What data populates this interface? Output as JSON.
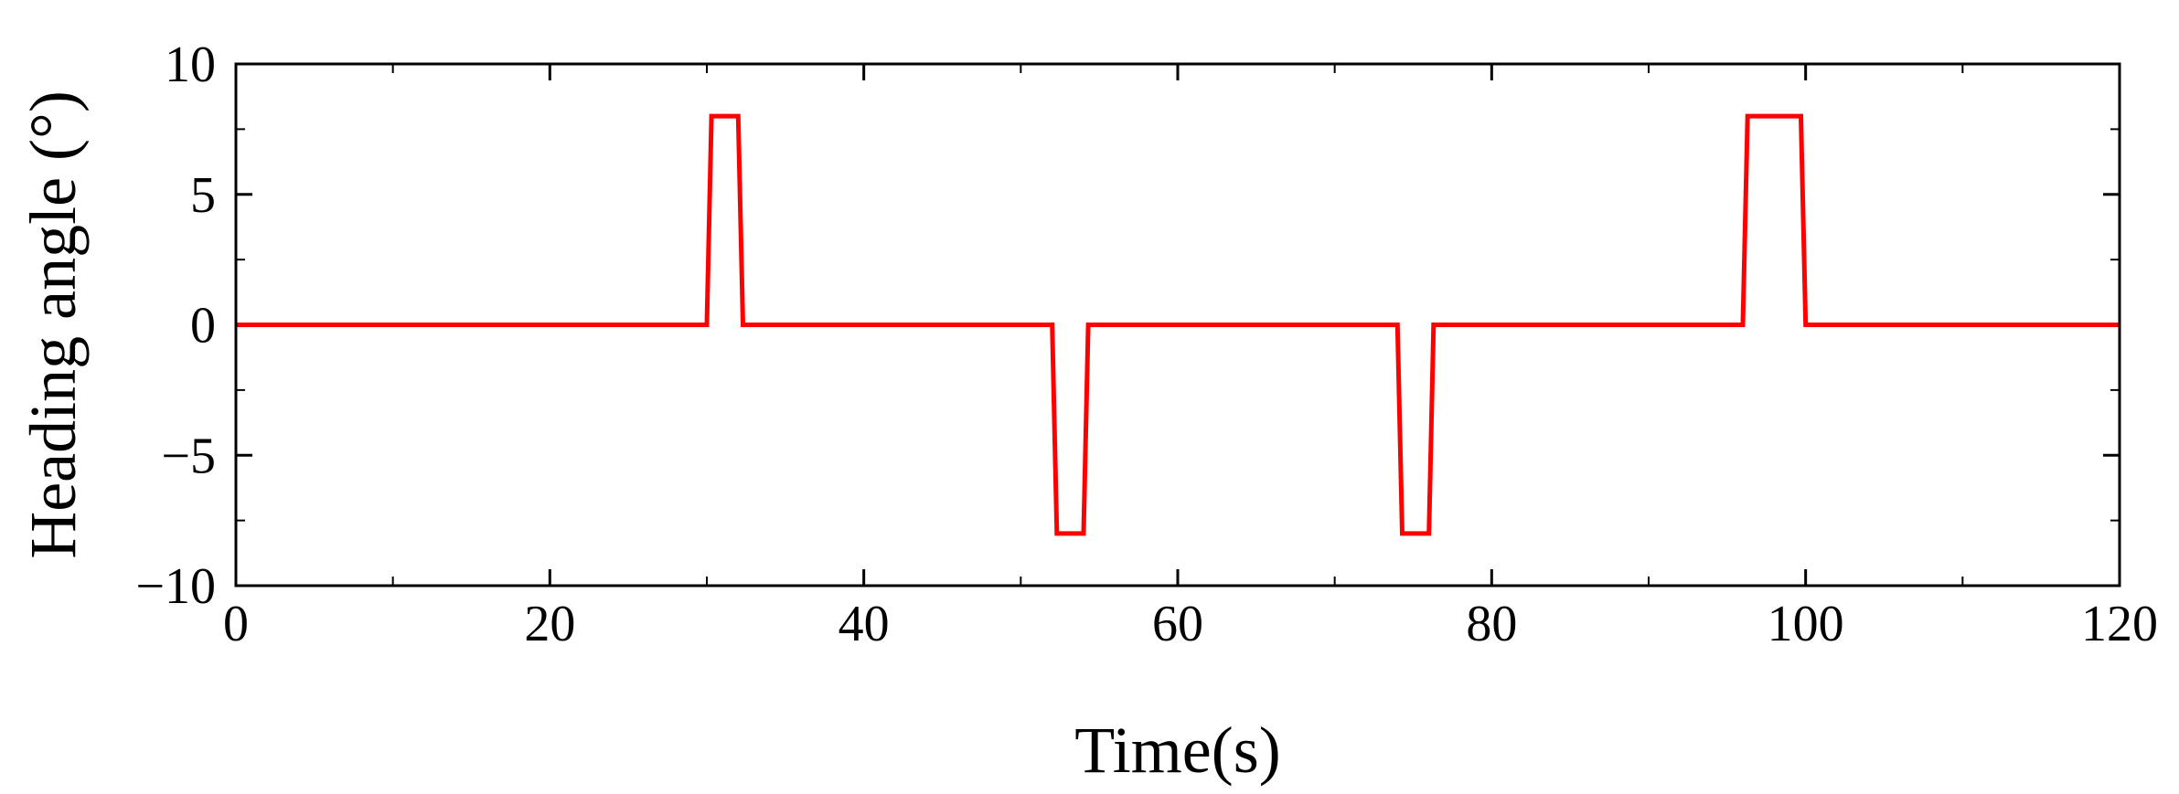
{
  "chart_data": {
    "type": "line",
    "title": "",
    "xlabel": "Time(s)",
    "ylabel": "Heading angle (°)",
    "xlim": [
      0,
      120
    ],
    "ylim": [
      -10,
      10
    ],
    "x_ticks": [
      0,
      20,
      40,
      60,
      80,
      100,
      120
    ],
    "x_tick_labels": [
      "0",
      "20",
      "40",
      "60",
      "80",
      "100",
      "120"
    ],
    "y_ticks": [
      10,
      5,
      0,
      -5,
      -10
    ],
    "y_tick_labels": [
      "10",
      "5",
      "0",
      "−5",
      "−10"
    ],
    "grid": false,
    "legend": "none",
    "series": [
      {
        "color": "#ff0000",
        "x": [
          0,
          30,
          30.3,
          32,
          32.3,
          52,
          52.3,
          54,
          54.3,
          74,
          74.3,
          76,
          76.3,
          96,
          96.3,
          99.7,
          100,
          120
        ],
        "y": [
          0,
          0,
          8,
          8,
          0,
          0,
          -8,
          -8,
          0,
          0,
          -8,
          -8,
          0,
          0,
          8,
          8,
          0,
          0
        ]
      }
    ]
  }
}
